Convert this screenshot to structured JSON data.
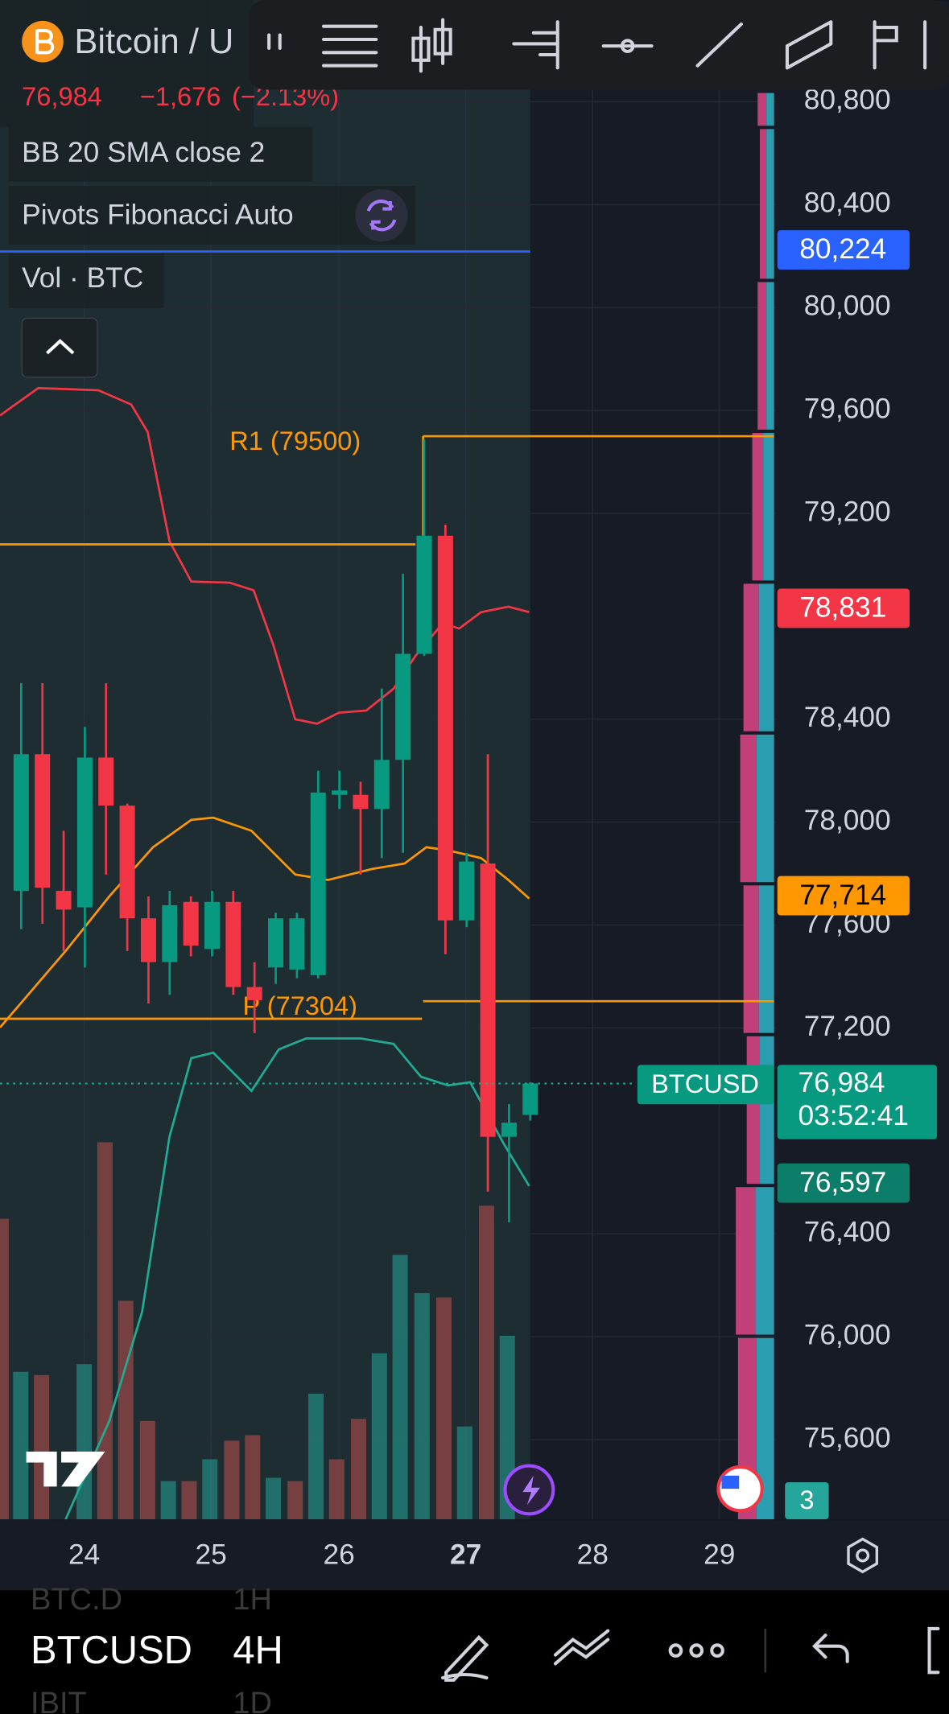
{
  "header": {
    "symbol": "Bitcoin / U",
    "price": "76,984",
    "change": "−1,676",
    "change_pct": "(−2.13%)"
  },
  "legend": {
    "bb": "BB 20 SMA close 2",
    "pivots": "Pivots Fibonacci Auto",
    "volume": "Vol · BTC"
  },
  "colors": {
    "up": "#089981",
    "down": "#f23645"
  },
  "price_axis": {
    "ylim": [
      75290,
      81195
    ],
    "ticks": [
      {
        "value": 80800,
        "label": "80,800"
      },
      {
        "value": 80400,
        "label": "80,400"
      },
      {
        "value": 80000,
        "label": "80,000"
      },
      {
        "value": 79600,
        "label": "79,600"
      },
      {
        "value": 79200,
        "label": "79,200"
      },
      {
        "value": 78400,
        "label": "78,400"
      },
      {
        "value": 78000,
        "label": "78,000"
      },
      {
        "value": 77600,
        "label": "77,600"
      },
      {
        "value": 77200,
        "label": "77,200"
      },
      {
        "value": 76400,
        "label": "76,400"
      },
      {
        "value": 76000,
        "label": "76,000"
      },
      {
        "value": 75600,
        "label": "75,600"
      }
    ]
  },
  "pivots": [
    {
      "value": 79500,
      "label": "R1 (79500)"
    },
    {
      "value": 77304,
      "label": "P (77304)"
    }
  ],
  "price_tags": [
    {
      "value": 80224,
      "label": "80,224",
      "color": "#2962ff"
    },
    {
      "value": 78831,
      "label": "78,831",
      "color": "#f23645"
    },
    {
      "value": 77714,
      "label": "77,714",
      "color": "#ff9800"
    },
    {
      "value": 76597,
      "label": "76,597",
      "color": "#0b7d69"
    }
  ],
  "last_price": {
    "value": 76984,
    "label": "76,984",
    "countdown": "03:52:41",
    "symbol": "BTCUSD"
  },
  "events_count": "3",
  "candles": [
    {
      "open": 77733,
      "high": 78540,
      "low": 77584,
      "close": 78264
    },
    {
      "open": 78264,
      "high": 78540,
      "low": 77605,
      "close": 77745
    },
    {
      "open": 77733,
      "high": 77966,
      "low": 77499,
      "close": 77660
    },
    {
      "open": 77669,
      "high": 78370,
      "low": 77435,
      "close": 78251
    },
    {
      "open": 78251,
      "high": 78540,
      "low": 77796,
      "close": 78064
    },
    {
      "open": 78064,
      "high": 78072,
      "low": 77499,
      "close": 77626
    },
    {
      "open": 77626,
      "high": 77711,
      "low": 77295,
      "close": 77456
    },
    {
      "open": 77456,
      "high": 77733,
      "low": 77329,
      "close": 77677
    },
    {
      "open": 77690,
      "high": 77711,
      "low": 77478,
      "close": 77520
    },
    {
      "open": 77507,
      "high": 77733,
      "low": 77478,
      "close": 77690
    },
    {
      "open": 77690,
      "high": 77733,
      "low": 77329,
      "close": 77359
    },
    {
      "open": 77359,
      "high": 77456,
      "low": 77180,
      "close": 77308
    },
    {
      "open": 77435,
      "high": 77648,
      "low": 77371,
      "close": 77626
    },
    {
      "open": 77427,
      "high": 77648,
      "low": 77393,
      "close": 77626
    },
    {
      "open": 77405,
      "high": 78200,
      "low": 77393,
      "close": 78115
    },
    {
      "open": 78106,
      "high": 78200,
      "low": 78051,
      "close": 78123
    },
    {
      "open": 78106,
      "high": 78157,
      "low": 77796,
      "close": 78051
    },
    {
      "open": 78051,
      "high": 78519,
      "low": 77860,
      "close": 78242
    },
    {
      "open": 78242,
      "high": 78965,
      "low": 77881,
      "close": 78654
    },
    {
      "open": 78654,
      "high": 79487,
      "low": 78646,
      "close": 79113
    },
    {
      "open": 79113,
      "high": 79156,
      "low": 77486,
      "close": 77618
    },
    {
      "open": 77618,
      "high": 77881,
      "low": 77592,
      "close": 77847
    },
    {
      "open": 77839,
      "high": 78264,
      "low": 76564,
      "close": 76777
    },
    {
      "open": 76777,
      "high": 76904,
      "low": 76445,
      "close": 76832
    },
    {
      "open": 76862,
      "high": 76989,
      "low": 76840,
      "close": 76984
    }
  ],
  "time_axis": [
    "24",
    "25",
    "26",
    "27",
    "28",
    "29"
  ],
  "bottom_bar": {
    "symbol": "BTCUSD",
    "interval": "4H",
    "prev_symbol": "BTC.D",
    "prev_interval": "1H",
    "next_symbol": "IBIT",
    "next_interval": "1D"
  }
}
